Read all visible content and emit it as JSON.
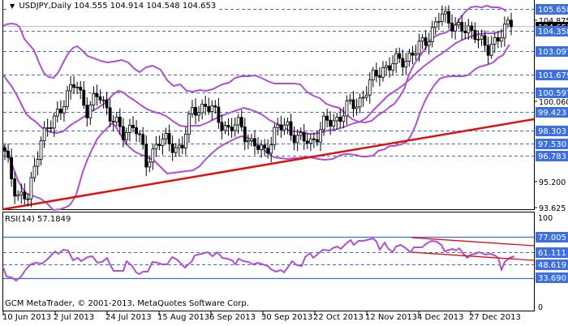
{
  "header": {
    "symbol": "USDJPY",
    "timeframe": "Daily",
    "title": "USDJPY,Daily",
    "ohlc": "104.555 104.914 104.548 104.653"
  },
  "rsi_panel": {
    "title": "RSI(14) 57.1849"
  },
  "footer": {
    "copyright": "GCM MetaTrader, © 2001-2013, MetaQuotes Software Corp."
  },
  "colors": {
    "background": "#ffffff",
    "axis": "#000000",
    "level_line": "#3a6fd8",
    "level_tag_bg": "#3e6fe0",
    "bollinger": "#b04fd0",
    "trendline": "#e01010",
    "candle": "#000000",
    "current_price_line": "#c0c0c0"
  },
  "chart_data": [
    {
      "type": "candlestick",
      "title": "USDJPY,Daily",
      "subtitle": "104.555 104.914 104.548 104.653",
      "indicators": [
        "Bollinger Bands (upper, middle, lower)",
        "Ascending trendline"
      ],
      "ylim": [
        93.625,
        106.2
      ],
      "price_scale_ticks": [
        "105.658",
        "104.875",
        "104.653",
        "104.358",
        "103.097",
        "101.679",
        "100.597",
        "100.060",
        "99.423",
        "98.303",
        "97.530",
        "96.783",
        "95.200",
        "93.625"
      ],
      "horizontal_levels": [
        105.658,
        104.358,
        103.097,
        101.679,
        100.597,
        99.423,
        98.303,
        97.53,
        96.783
      ],
      "highlighted_tags": [
        "105.658",
        "104.358",
        "103.097",
        "101.679",
        "100.597",
        "99.423",
        "98.303",
        "97.530",
        "96.783"
      ],
      "plain_ticks": [
        "100.060",
        "95.200",
        "93.625"
      ],
      "current_price": 104.653,
      "x_tick_labels": [
        "10 Jun 2013",
        "2 Jul 2013",
        "24 Jul 2013",
        "15 Aug 2013",
        "6 Sep 2013",
        "30 Sep 2013",
        "22 Oct 2013",
        "12 Nov 2013",
        "4 Dec 2013",
        "27 Dec 2013"
      ],
      "trendline": {
        "from": {
          "date": "10 Jun 2013",
          "price": 93.7
        },
        "to": {
          "date": "end",
          "price": 99.3
        }
      },
      "close_path_approx": [
        [
          "10 Jun 2013",
          96.8
        ],
        [
          "13 Jun 2013",
          94.5
        ],
        [
          "17 Jun 2013",
          94.1
        ],
        [
          "21 Jun 2013",
          97.9
        ],
        [
          "26 Jun 2013",
          98.6
        ],
        [
          "2 Jul 2013",
          100.2
        ],
        [
          "8 Jul 2013",
          101.1
        ],
        [
          "12 Jul 2013",
          99.6
        ],
        [
          "18 Jul 2013",
          100.4
        ],
        [
          "24 Jul 2013",
          99.3
        ],
        [
          "30 Jul 2013",
          97.9
        ],
        [
          "5 Aug 2013",
          98.9
        ],
        [
          "9 Aug 2013",
          96.2
        ],
        [
          "15 Aug 2013",
          97.8
        ],
        [
          "21 Aug 2013",
          97.4
        ],
        [
          "27 Aug 2013",
          97.3
        ],
        [
          "2 Sep 2013",
          99.6
        ],
        [
          "6 Sep 2013",
          99.8
        ],
        [
          "12 Sep 2013",
          99.2
        ],
        [
          "18 Sep 2013",
          98.3
        ],
        [
          "24 Sep 2013",
          98.7
        ],
        [
          "30 Sep 2013",
          97.4
        ],
        [
          "4 Oct 2013",
          97.0
        ],
        [
          "10 Oct 2013",
          98.3
        ],
        [
          "16 Oct 2013",
          98.6
        ],
        [
          "22 Oct 2013",
          97.7
        ],
        [
          "28 Oct 2013",
          97.6
        ],
        [
          "1 Nov 2013",
          98.6
        ],
        [
          "7 Nov 2013",
          98.9
        ],
        [
          "12 Nov 2013",
          99.6
        ],
        [
          "18 Nov 2013",
          100.0
        ],
        [
          "22 Nov 2013",
          101.1
        ],
        [
          "28 Nov 2013",
          102.1
        ],
        [
          "4 Dec 2013",
          102.3
        ],
        [
          "10 Dec 2013",
          102.7
        ],
        [
          "16 Dec 2013",
          103.1
        ],
        [
          "20 Dec 2013",
          104.1
        ],
        [
          "27 Dec 2013",
          105.2
        ],
        [
          "31 Dec 2013",
          104.9
        ],
        [
          "3 Jan 2014",
          104.2
        ],
        [
          "7 Jan 2014",
          104.4
        ],
        [
          "10 Jan 2014",
          102.9
        ],
        [
          "14 Jan 2014",
          104.3
        ],
        [
          "17 Jan 2014",
          104.653
        ]
      ]
    },
    {
      "type": "line",
      "title": "RSI(14) 57.1849",
      "ylim": [
        0,
        100
      ],
      "y_ticks": [
        "100",
        "77.005",
        "61.111",
        "48.619",
        "33.690",
        "0"
      ],
      "levels": [
        77.005,
        61.111,
        48.619,
        33.69
      ],
      "current_value": 57.1849,
      "x_tick_labels": [
        "10 Jun 2013",
        "2 Jul 2013",
        "24 Jul 2013",
        "15 Aug 2013",
        "6 Sep 2013",
        "30 Sep 2013",
        "22 Oct 2013",
        "12 Nov 2013",
        "4 Dec 2013",
        "27 Dec 2013"
      ],
      "trendlines": [
        {
          "from": {
            "date": "4 Dec 2013",
            "value": 77.0
          },
          "to": {
            "date": "end",
            "value": 66.5
          }
        },
        {
          "from": {
            "date": "4 Dec 2013",
            "value": 61.0
          },
          "to": {
            "date": "end",
            "value": 53.0
          }
        }
      ],
      "values_approx": [
        44,
        36,
        34,
        38,
        48,
        54,
        56,
        58,
        62,
        64,
        61,
        63,
        56,
        52,
        56,
        54,
        57,
        53,
        50,
        46,
        46,
        52,
        48,
        42,
        44,
        49,
        47,
        48,
        52,
        56,
        54,
        60,
        62,
        66,
        62,
        66,
        64,
        62,
        58,
        54,
        56,
        52,
        50,
        44,
        46,
        50,
        52,
        56,
        58,
        64,
        62,
        66,
        70,
        68,
        74,
        72,
        76,
        72,
        66,
        60,
        64,
        58,
        62,
        58,
        64,
        66,
        70,
        66,
        60,
        64,
        58,
        44,
        54,
        57.18
      ]
    }
  ]
}
